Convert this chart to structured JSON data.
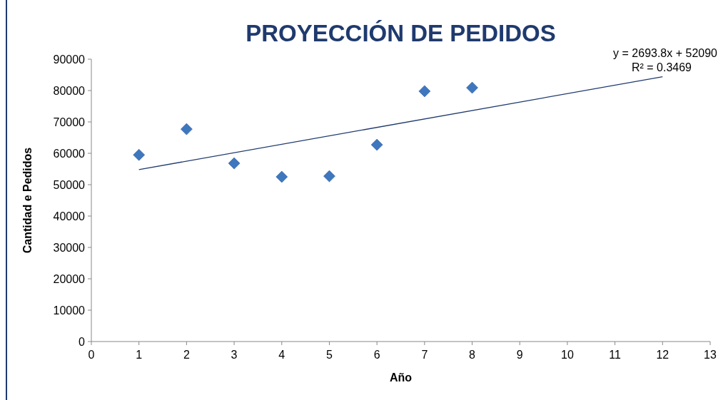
{
  "chart_data": {
    "type": "scatter",
    "title": "PROYECCIÓN DE PEDIDOS",
    "xlabel": "Año",
    "ylabel": "Cantidad e Pedidos",
    "xlim": [
      0,
      13
    ],
    "xticks": [
      0,
      1,
      2,
      3,
      4,
      5,
      6,
      7,
      8,
      9,
      10,
      11,
      12,
      13
    ],
    "ylim": [
      0,
      90000
    ],
    "yticks": [
      0,
      10000,
      20000,
      30000,
      40000,
      50000,
      60000,
      70000,
      80000,
      90000
    ],
    "grid": false,
    "marker": "diamond",
    "annotations": [
      "y = 2693.8x + 52090",
      "R² = 0.3469"
    ],
    "series": [
      {
        "color": "#3f77bf",
        "x": [
          1,
          2,
          3,
          4,
          5,
          6,
          7,
          8
        ],
        "values": [
          59500,
          67700,
          56800,
          52500,
          52700,
          62700,
          79800,
          80900
        ]
      },
      {
        "type": "line",
        "color": "#1f3a6e",
        "x": [
          1,
          12
        ],
        "values": [
          54800,
          84400
        ],
        "line_style": "solid",
        "marker": "none"
      }
    ]
  }
}
